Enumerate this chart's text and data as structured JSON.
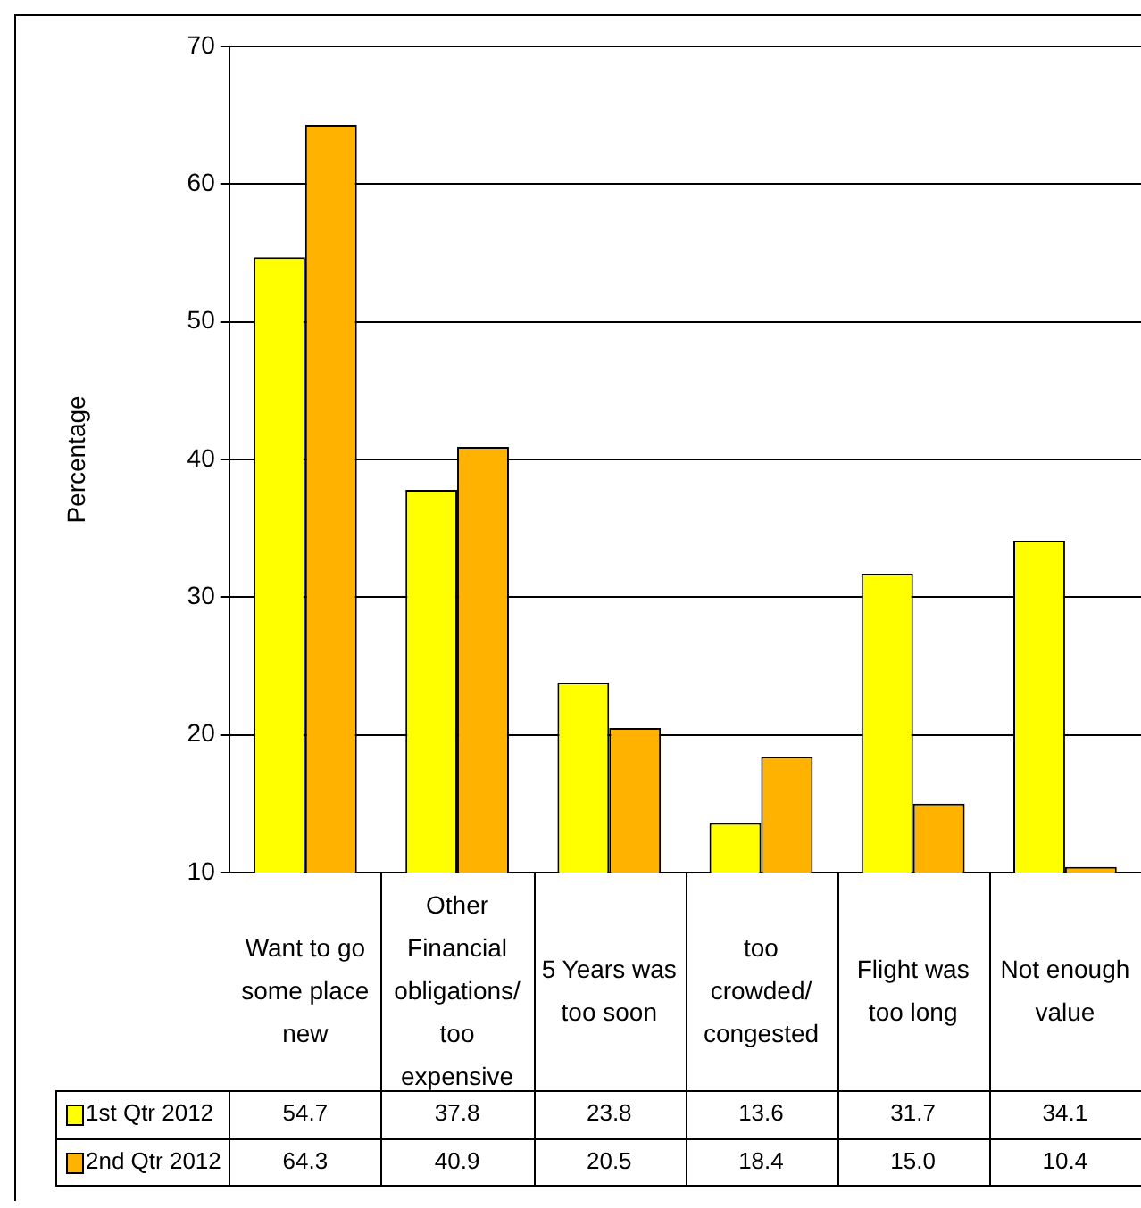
{
  "chart_data": {
    "type": "bar",
    "ylabel": "Percentage",
    "categories": [
      "Want to go some place new",
      "Other Financial obligations/ too expensive",
      "5 Years was too soon",
      "too crowded/ congested",
      "Flight was too long",
      "Not enough value"
    ],
    "series": [
      {
        "name": "1st Qtr 2012",
        "color": "#ffff00",
        "values": [
          54.7,
          37.8,
          23.8,
          13.6,
          31.7,
          34.1
        ],
        "value_labels": [
          "54.7",
          "37.8",
          "23.8",
          "13.6",
          "31.7",
          "34.1"
        ]
      },
      {
        "name": "2nd Qtr 2012",
        "color": "#ffb300",
        "values": [
          64.3,
          40.9,
          20.5,
          18.4,
          15.0,
          10.4
        ],
        "value_labels": [
          "64.3",
          "40.9",
          "20.5",
          "18.4",
          "15.0",
          "10.4"
        ]
      }
    ],
    "ylim": [
      10,
      70
    ],
    "yticks": [
      10,
      20,
      30,
      40,
      50,
      60,
      70
    ],
    "grid": "y",
    "legend": "bottom"
  }
}
